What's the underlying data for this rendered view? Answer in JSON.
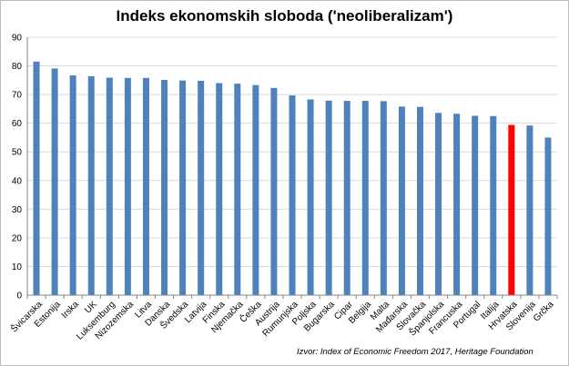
{
  "chart_data": {
    "type": "bar",
    "title": "Indeks ekonomskih sloboda ('neoliberalizam')",
    "xlabel": "",
    "ylabel": "",
    "ylim": [
      0,
      90
    ],
    "yticks": [
      0,
      10,
      20,
      30,
      40,
      50,
      60,
      70,
      80,
      90
    ],
    "grid": true,
    "legend": "none",
    "categories": [
      "Švicarska",
      "Estonija",
      "Irska",
      "UK",
      "Luksemburg",
      "Nizozemska",
      "Litva",
      "Danska",
      "Švedska",
      "Latvija",
      "Finska",
      "Njemačka",
      "Češka",
      "Austrija",
      "Rumunjska",
      "Poljska",
      "Bugarska",
      "Cipar",
      "Belgija",
      "Malta",
      "Mađarska",
      "Slovačka",
      "Španjolska",
      "Francuska",
      "Portugal",
      "Italija",
      "Hrvatska",
      "Slovenija",
      "Grčka"
    ],
    "values": [
      81.5,
      79.1,
      76.7,
      76.4,
      75.9,
      75.8,
      75.8,
      75.1,
      74.9,
      74.8,
      74.0,
      73.8,
      73.3,
      72.3,
      69.7,
      68.3,
      67.9,
      67.8,
      67.8,
      67.7,
      65.8,
      65.7,
      63.6,
      63.3,
      62.6,
      62.5,
      59.4,
      59.2,
      55.0
    ],
    "highlight_category": "Hrvatska",
    "colors": {
      "bar": "#4f81bd",
      "highlight": "#ff0000",
      "grid": "#d9d9d9",
      "axis": "#868686"
    },
    "source": "Izvor:  Index of Economic Freedom 2017, Heritage Foundation"
  }
}
